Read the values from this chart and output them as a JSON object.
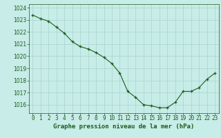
{
  "x": [
    0,
    1,
    2,
    3,
    4,
    5,
    6,
    7,
    8,
    9,
    10,
    11,
    12,
    13,
    14,
    15,
    16,
    17,
    18,
    19,
    20,
    21,
    22,
    23
  ],
  "y": [
    1023.4,
    1023.1,
    1022.9,
    1022.4,
    1021.9,
    1021.2,
    1020.8,
    1020.6,
    1020.3,
    1019.9,
    1019.4,
    1018.6,
    1017.1,
    1016.6,
    1016.0,
    1015.9,
    1015.75,
    1015.75,
    1016.2,
    1017.1,
    1017.1,
    1017.4,
    1018.1,
    1018.6
  ],
  "line_color": "#1a5c1a",
  "marker": "+",
  "bg_color": "#c8ece8",
  "grid_color": "#a8d4ce",
  "xlabel": "Graphe pression niveau de la mer (hPa)",
  "xlim": [
    -0.5,
    23.5
  ],
  "ylim": [
    1015.3,
    1024.3
  ],
  "yticks": [
    1016,
    1017,
    1018,
    1019,
    1020,
    1021,
    1022,
    1023,
    1024
  ],
  "xticks": [
    0,
    1,
    2,
    3,
    4,
    5,
    6,
    7,
    8,
    9,
    10,
    11,
    12,
    13,
    14,
    15,
    16,
    17,
    18,
    19,
    20,
    21,
    22,
    23
  ],
  "xlabel_fontsize": 6.5,
  "tick_fontsize": 5.5
}
